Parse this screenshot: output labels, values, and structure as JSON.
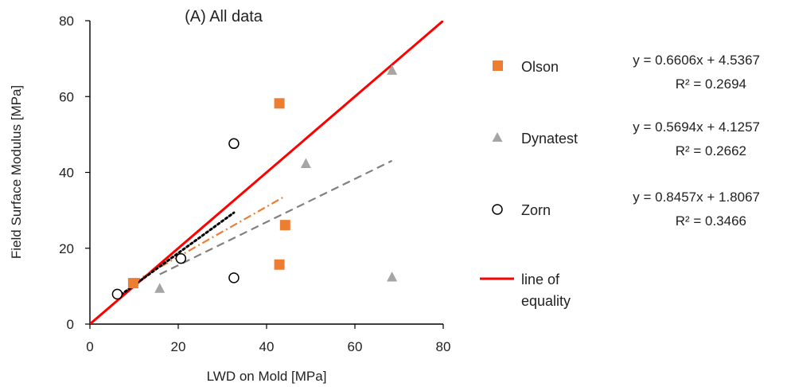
{
  "chart_data": {
    "type": "scatter",
    "title": "(A) All data",
    "xlabel": "LWD on Mold [MPa]",
    "ylabel": "Field Surface Modulus [MPa]",
    "xlim": [
      0,
      80
    ],
    "ylim": [
      0,
      80
    ],
    "xticks": [
      "0",
      "20",
      "40",
      "60",
      "80"
    ],
    "yticks": [
      "0",
      "20",
      "40",
      "60",
      "80"
    ],
    "grid": false,
    "legend_position": "right",
    "series": [
      {
        "name": "Olson",
        "marker": "square",
        "color": "#ED7D31",
        "points": [
          [
            9.8,
            10.8
          ],
          [
            42.9,
            58.2
          ],
          [
            44.2,
            26.1
          ],
          [
            42.9,
            15.7
          ]
        ],
        "trendline": {
          "slope": 0.6606,
          "intercept": 4.5367,
          "x_range": [
            9.8,
            44.2
          ],
          "style": "dash-dot",
          "color": "#ED7D31"
        },
        "equation": "y = 0.6606x + 4.5367",
        "r2": "R² = 0.2694"
      },
      {
        "name": "Dynatest",
        "marker": "triangle",
        "color": "#A5A5A5",
        "points": [
          [
            15.8,
            9.4
          ],
          [
            48.9,
            42.3
          ],
          [
            68.4,
            66.9
          ],
          [
            68.4,
            12.4
          ]
        ],
        "trendline": {
          "slope": 0.5694,
          "intercept": 4.1257,
          "x_range": [
            15.8,
            68.4
          ],
          "style": "long-dash",
          "color": "#808080"
        },
        "equation": "y = 0.5694x + 4.1257",
        "r2": "R² = 0.2662"
      },
      {
        "name": "Zorn",
        "marker": "open-circle",
        "color": "#000000",
        "points": [
          [
            6.2,
            7.9
          ],
          [
            20.6,
            17.3
          ],
          [
            32.6,
            47.6
          ],
          [
            32.6,
            12.2
          ]
        ],
        "trendline": {
          "slope": 0.8457,
          "intercept": 1.8067,
          "x_range": [
            6.2,
            32.6
          ],
          "style": "dotted",
          "color": "#000000"
        },
        "equation": "y = 0.8457x + 1.8067",
        "r2": "R² = 0.3466"
      }
    ],
    "reference_line": {
      "name_line1": "line of",
      "name_line2": "equality",
      "color": "#FF0000",
      "slope": 1,
      "intercept": 0
    }
  }
}
